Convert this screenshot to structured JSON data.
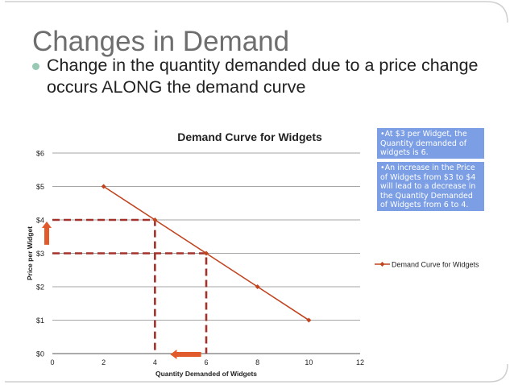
{
  "slide": {
    "title": "Changes  in Demand",
    "bullet": "Change in the quantity demanded due to a price change occurs ALONG the demand curve"
  },
  "notes": [
    "•At $3 per Widget, the Quantity demanded of widgets is 6.",
    "•An increase in the Price of Widgets from $3 to $4 will lead to a decrease in the Quantity Demanded of Widgets from 6 to 4."
  ],
  "colors": {
    "series": "#c1441f",
    "dashes": "#a3322c",
    "arrow": "#e05a2b",
    "note_bg": "#7b9ee4",
    "grid": "#888888"
  },
  "chart_data": {
    "type": "line",
    "title": "Demand Curve for Widgets",
    "xlabel": "Quantity Demanded of Widgets",
    "ylabel": "Price per Widget",
    "xlim": [
      0,
      12
    ],
    "ylim": [
      0,
      6
    ],
    "x_ticks": [
      "0",
      "2",
      "4",
      "6",
      "8",
      "10",
      "12"
    ],
    "y_ticks": [
      "$0",
      "$1",
      "$2",
      "$3",
      "$4",
      "$5",
      "$6"
    ],
    "grid": "horizontal",
    "legend_position": "right",
    "series": [
      {
        "name": "Demand Curve for Widgets",
        "x": [
          2,
          4,
          6,
          8,
          10
        ],
        "y": [
          5,
          4,
          3,
          2,
          1
        ]
      }
    ],
    "guides": [
      {
        "x": 4,
        "y": 4
      },
      {
        "x": 6,
        "y": 3
      }
    ],
    "arrows": [
      {
        "direction": "up",
        "at_x": 0,
        "from_y": 3.4,
        "to_y": 4.0
      },
      {
        "direction": "left",
        "at_y": 0,
        "from_x": 5.8,
        "to_x": 4.6
      }
    ]
  }
}
